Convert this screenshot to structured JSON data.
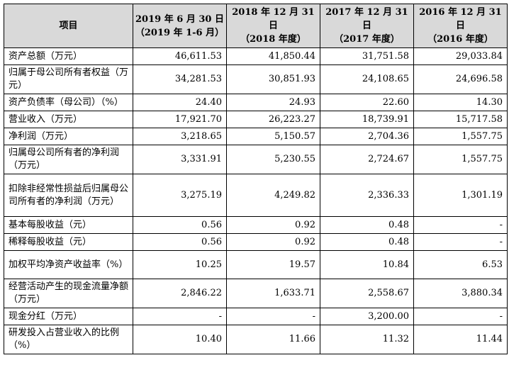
{
  "table": {
    "header": {
      "item": "项目",
      "periods": [
        {
          "date": "2019 年 6 月 30 日",
          "sub": "（2019 年 1-6 月）"
        },
        {
          "date": "2018 年 12 月 31 日",
          "sub": "（2018 年度）"
        },
        {
          "date": "2017 年 12 月 31 日",
          "sub": "（2017 年度）"
        },
        {
          "date": "2016 年 12 月 31 日",
          "sub": "（2016 年度）"
        }
      ]
    },
    "rows": [
      {
        "label": "资产总额（万元）",
        "values": [
          "46,611.53",
          "41,850.44",
          "31,751.58",
          "29,033.84"
        ]
      },
      {
        "label": "归属于母公司所有者权益（万元）",
        "values": [
          "34,281.53",
          "30,851.93",
          "24,108.65",
          "24,696.58"
        ]
      },
      {
        "label": "资产负债率（母公司）（%）",
        "values": [
          "24.40",
          "24.93",
          "22.60",
          "14.30"
        ]
      },
      {
        "label": "营业收入（万元）",
        "values": [
          "17,921.70",
          "26,223.27",
          "18,739.91",
          "15,717.58"
        ]
      },
      {
        "label": "净利润（万元）",
        "values": [
          "3,218.65",
          "5,150.57",
          "2,704.36",
          "1,557.75"
        ]
      },
      {
        "label": "归属母公司所有者的净利润（万元）",
        "values": [
          "3,331.91",
          "5,230.55",
          "2,724.67",
          "1,557.75"
        ]
      },
      {
        "label": "扣除非经常性损益后归属母公司所有者的净利润（万元）",
        "values": [
          "3,275.19",
          "4,249.82",
          "2,336.33",
          "1,301.19"
        ]
      },
      {
        "label": "基本每股收益（元）",
        "values": [
          "0.56",
          "0.92",
          "0.48",
          "-"
        ]
      },
      {
        "label": "稀释每股收益（元）",
        "values": [
          "0.56",
          "0.92",
          "0.48",
          "-"
        ]
      },
      {
        "label": "加权平均净资产收益率（%）",
        "values": [
          "10.25",
          "19.57",
          "10.84",
          "6.53"
        ]
      },
      {
        "label": "经营活动产生的现金流量净额（万元）",
        "values": [
          "2,846.22",
          "1,633.71",
          "2,558.67",
          "3,880.34"
        ]
      },
      {
        "label": "现金分红（万元）",
        "values": [
          "-",
          "-",
          "3,200.00",
          "-"
        ]
      },
      {
        "label": "研发投入占营业收入的比例（%）",
        "values": [
          "10.40",
          "11.66",
          "11.32",
          "11.44"
        ]
      }
    ]
  }
}
